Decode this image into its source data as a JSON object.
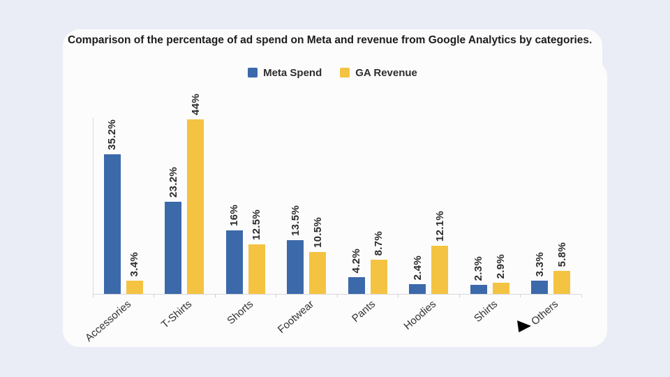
{
  "colors": {
    "background": "#eaedf5",
    "card": "#fcfcfd",
    "meta_blue": "#3c69aa",
    "ga_yellow": "#f5c342",
    "axis_line": "#d9d9dd",
    "text_dark": "#2b2b2b"
  },
  "title": "Comparison of the percentage of ad spend on Meta and revenue from Google Analytics by categories.",
  "legend": [
    {
      "label": "Meta Spend",
      "color": "#3c69aa"
    },
    {
      "label": "GA Revenue",
      "color": "#f5c342"
    }
  ],
  "chart_data": {
    "type": "bar",
    "categories": [
      "Accessories",
      "T-Shirts",
      "Shorts",
      "Footwear",
      "Pants",
      "Hoodies",
      "Shirts",
      "Others"
    ],
    "series": [
      {
        "name": "Meta Spend",
        "color": "#3c69aa",
        "values": [
          35.2,
          23.2,
          16,
          13.5,
          4.2,
          2.4,
          2.3,
          3.3
        ],
        "value_labels": [
          "35.2%",
          "23.2%",
          "16%",
          "13.5%",
          "4.2%",
          "2.4%",
          "2.3%",
          "3.3%"
        ]
      },
      {
        "name": "GA Revenue",
        "color": "#f5c342",
        "values": [
          3.4,
          44,
          12.5,
          10.5,
          8.7,
          12.1,
          2.9,
          5.8
        ],
        "value_labels": [
          "3.4%",
          "44%",
          "12.5%",
          "10.5%",
          "8.7%",
          "12.1%",
          "2.9%",
          "5.8%"
        ]
      }
    ],
    "title": "Comparison of the percentage of ad spend on Meta and revenue from Google Analytics by categories.",
    "xlabel": "",
    "ylabel": "",
    "ylim": [
      0,
      44
    ],
    "grid": false,
    "y_axis_ticks_visible": false,
    "legend_position": "top-center",
    "value_label_rotation": -90,
    "category_label_rotation": -41
  }
}
